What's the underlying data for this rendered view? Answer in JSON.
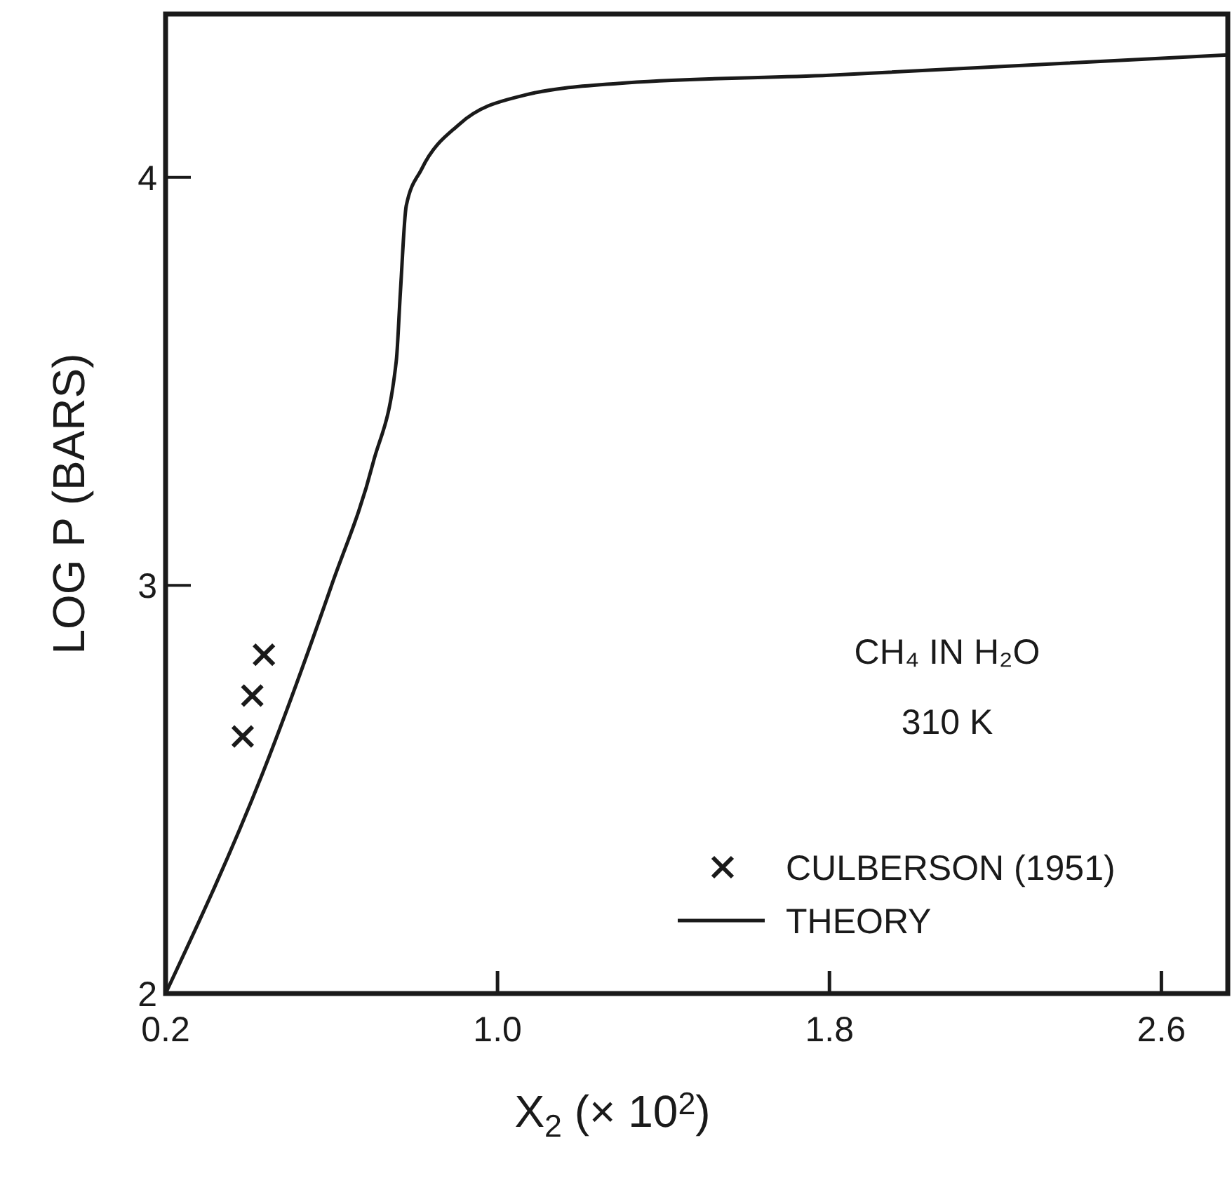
{
  "chart_data": {
    "type": "line",
    "xlabel": "X$_{2}$ (× 10$^{2}$)",
    "ylabel": "LOG P (BARS)",
    "xlim": [
      0.2,
      2.76
    ],
    "ylim": [
      2,
      4.4
    ],
    "xticks": [
      0.2,
      {
        "value": 1,
        "label": "1.0"
      },
      1.8,
      2.6
    ],
    "yticks": [
      2,
      3,
      4
    ],
    "grid": false,
    "legend": "bottom right",
    "annotations": [
      "CH₄ IN H₂O",
      "310 K"
    ],
    "series": [
      {
        "name": "CULBERSON (1951)",
        "type": "scatter",
        "marker": "cross",
        "color": "#1a1a1a",
        "x": [
          0.386,
          0.409,
          0.437
        ],
        "values": [
          2.63,
          2.73,
          2.83
        ]
      },
      {
        "name": "THEORY",
        "marker": "none",
        "line_style": "solid",
        "color": "#1a1a1a",
        "x": [
          0.2,
          0.434,
          0.6,
          0.7,
          0.756,
          0.766,
          0.78,
          0.817,
          0.908,
          1.06,
          1.29,
          1.8,
          2.76
        ],
        "values": [
          2,
          2.54,
          3,
          3.3,
          3.55,
          3.72,
          3.93,
          4.02,
          4.13,
          4.2,
          4.23,
          4.25,
          4.3
        ]
      }
    ]
  }
}
